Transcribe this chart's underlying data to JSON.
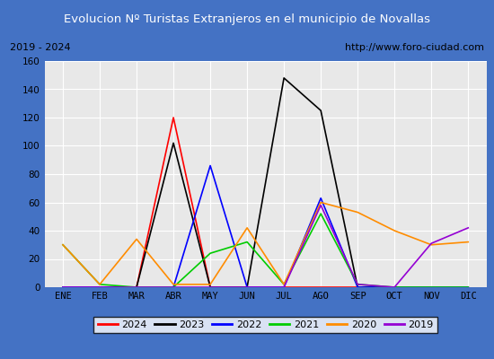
{
  "title": "Evolucion Nº Turistas Extranjeros en el municipio de Novallas",
  "subtitle_left": "2019 - 2024",
  "subtitle_right": "http://www.foro-ciudad.com",
  "title_bg_color": "#4472c4",
  "title_text_color": "#ffffff",
  "months": [
    "ENE",
    "FEB",
    "MAR",
    "ABR",
    "MAY",
    "JUN",
    "JUL",
    "AGO",
    "SEP",
    "OCT",
    "NOV",
    "DIC"
  ],
  "ylim": [
    0,
    160
  ],
  "yticks": [
    0,
    20,
    40,
    60,
    80,
    100,
    120,
    140,
    160
  ],
  "series": {
    "2024": {
      "color": "#ff0000",
      "values": [
        0,
        0,
        0,
        120,
        0,
        0,
        0,
        0,
        0,
        0,
        0,
        0
      ]
    },
    "2023": {
      "color": "#000000",
      "values": [
        0,
        0,
        0,
        102,
        0,
        0,
        148,
        125,
        0,
        0,
        0,
        0
      ]
    },
    "2022": {
      "color": "#0000ff",
      "values": [
        0,
        0,
        0,
        0,
        86,
        0,
        0,
        63,
        0,
        0,
        0,
        0
      ]
    },
    "2021": {
      "color": "#00cc00",
      "values": [
        30,
        2,
        0,
        0,
        24,
        32,
        2,
        52,
        2,
        0,
        0,
        0
      ]
    },
    "2020": {
      "color": "#ff8c00",
      "values": [
        30,
        2,
        34,
        2,
        2,
        42,
        2,
        60,
        53,
        40,
        30,
        32
      ]
    },
    "2019": {
      "color": "#9400d3",
      "values": [
        0,
        0,
        0,
        0,
        0,
        0,
        0,
        58,
        2,
        0,
        31,
        42
      ]
    }
  },
  "legend_order": [
    "2024",
    "2023",
    "2022",
    "2021",
    "2020",
    "2019"
  ],
  "bg_color": "#e8e8e8",
  "grid_color": "#ffffff",
  "border_color": "#4472c4",
  "plot_bg": "#d8d8d8"
}
